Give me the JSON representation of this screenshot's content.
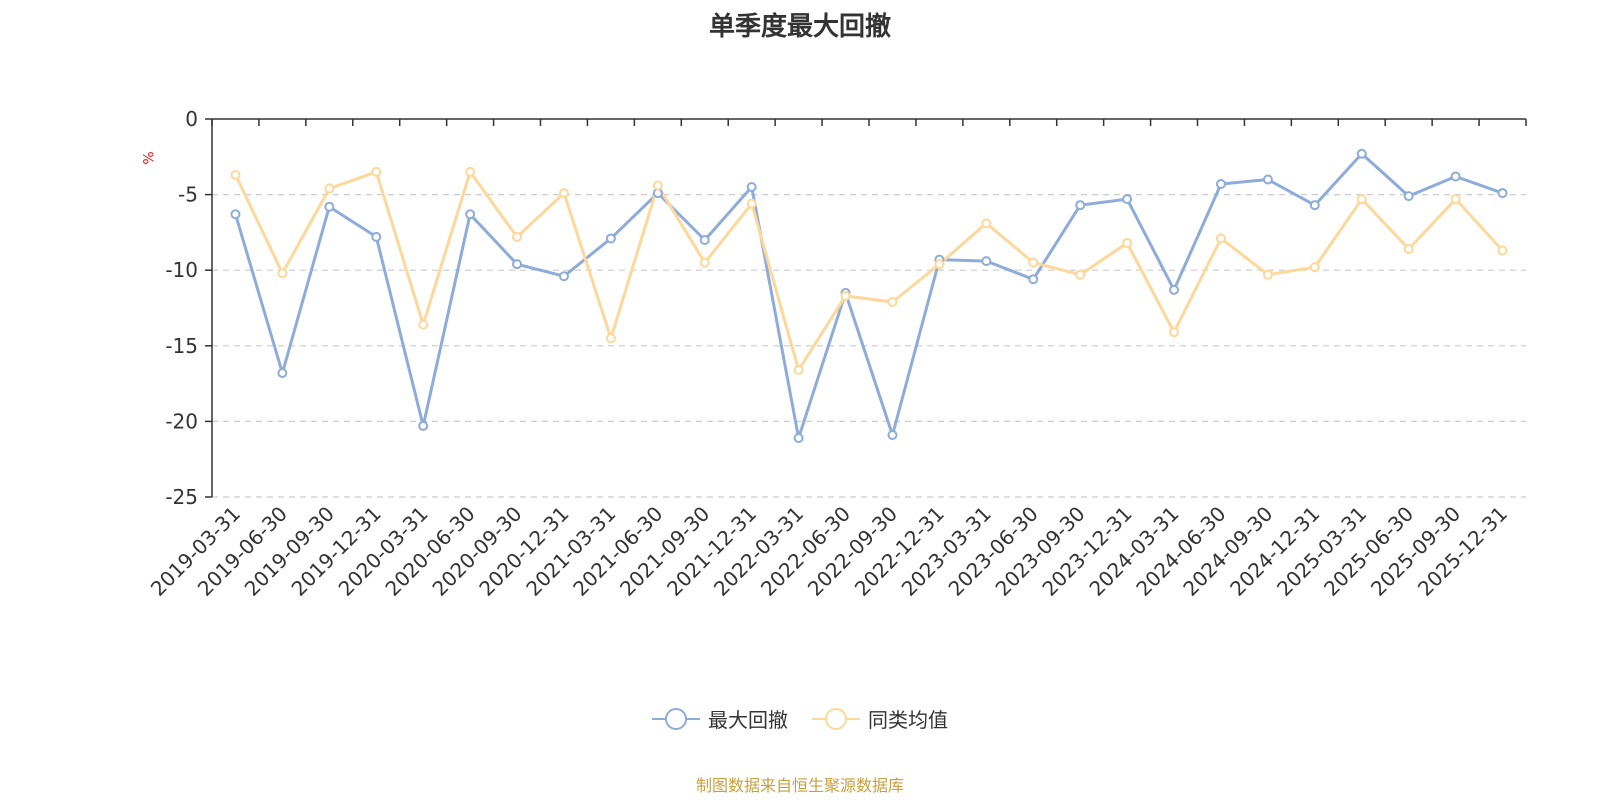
{
  "chart_data": {
    "type": "line",
    "title": "单季度最大回撤",
    "ylabel": "%",
    "ylim": [
      -25,
      0
    ],
    "yticks": [
      0,
      -5,
      -10,
      -15,
      -20,
      -25
    ],
    "grid": true,
    "legend_position": "bottom",
    "x": [
      "2019-03-31",
      "2019-06-30",
      "2019-09-30",
      "2019-12-31",
      "2020-03-31",
      "2020-06-30",
      "2020-09-30",
      "2020-12-31",
      "2021-03-31",
      "2021-06-30",
      "2021-09-30",
      "2021-12-31",
      "2022-03-31",
      "2022-06-30",
      "2022-09-30",
      "2022-12-31",
      "2023-03-31",
      "2023-06-30",
      "2023-09-30",
      "2023-12-31",
      "2024-03-31",
      "2024-06-30",
      "2024-09-30",
      "2024-12-31",
      "2025-03-31",
      "2025-06-30",
      "2025-09-30",
      "2025-12-31"
    ],
    "series": [
      {
        "name": "最大回撤",
        "color": "#8eacd9",
        "values": [
          -6.3,
          -16.8,
          -5.8,
          -7.8,
          -20.3,
          -6.3,
          -9.6,
          -10.4,
          -7.9,
          -4.9,
          -8.0,
          -4.5,
          -21.1,
          -11.5,
          -20.9,
          -9.3,
          -9.4,
          -10.6,
          -5.7,
          -5.3,
          -11.3,
          -4.3,
          -4.0,
          -5.7,
          -2.3,
          -5.1,
          -3.8,
          -4.9
        ]
      },
      {
        "name": "同类均值",
        "color": "#fdd89a",
        "values": [
          -3.7,
          -10.2,
          -4.6,
          -3.5,
          -13.6,
          -3.5,
          -7.8,
          -4.9,
          -14.5,
          -4.4,
          -9.5,
          -5.6,
          -16.6,
          -11.7,
          -12.1,
          -9.6,
          -6.9,
          -9.5,
          -10.3,
          -8.2,
          -14.1,
          -7.9,
          -10.3,
          -9.8,
          -5.3,
          -8.6,
          -5.3,
          -8.7
        ]
      }
    ]
  },
  "footer_text": "制图数据来自恒生聚源数据库",
  "colors": {
    "axis": "#333333",
    "grid": "#cccccc",
    "unit": "#e02020",
    "footer": "#c8a040"
  }
}
